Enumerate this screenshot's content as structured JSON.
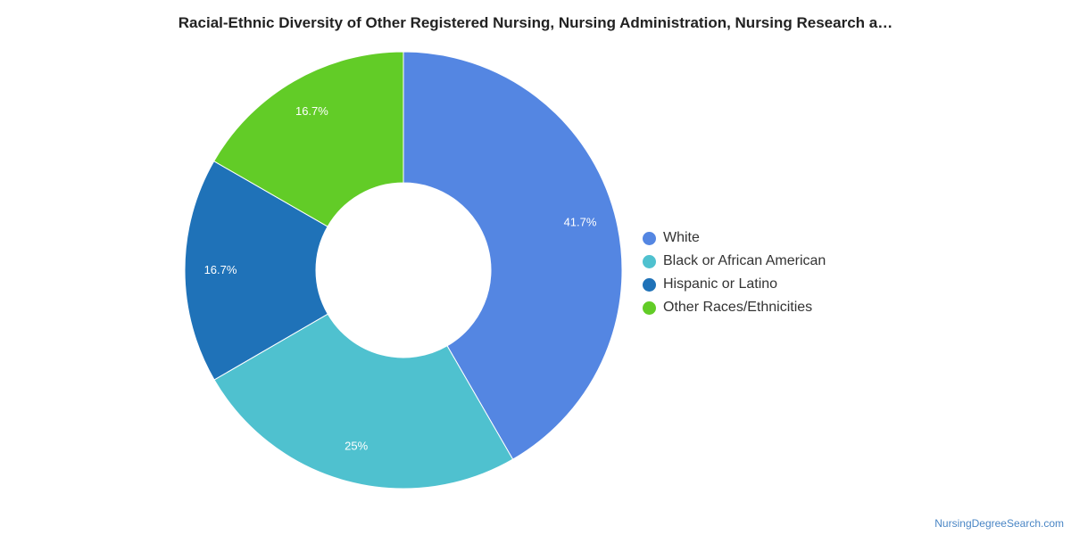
{
  "chart_data": {
    "type": "pie",
    "title": "Racial-Ethnic Diversity of Other Registered Nursing, Nursing Administration, Nursing Research a…",
    "categories": [
      "White",
      "Black or African American",
      "Hispanic or Latino",
      "Other Races/Ethnicities"
    ],
    "values": [
      41.7,
      25,
      16.7,
      16.7
    ],
    "labels": [
      "41.7%",
      "25%",
      "16.7%",
      "16.7%"
    ],
    "colors": [
      "#5486e2",
      "#4fc1cf",
      "#1f72b8",
      "#62cc27"
    ],
    "donut": true,
    "legend_position": "right"
  },
  "watermark": "NursingDegreeSearch.com"
}
